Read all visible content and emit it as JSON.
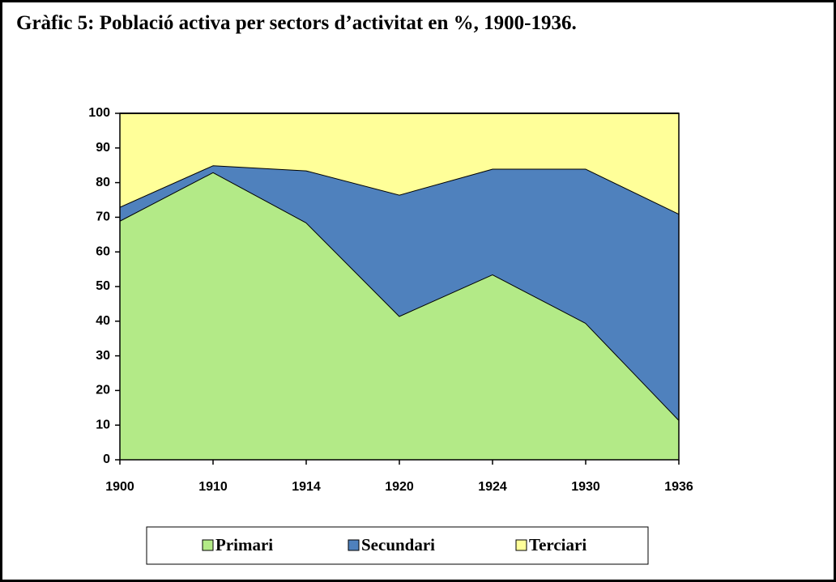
{
  "chart_data": {
    "type": "stacked_area",
    "title": "Gràfic 5: Població activa per sectors d’activitat en %, 1900-1936.",
    "categories": [
      "1900",
      "1910",
      "1914",
      "1920",
      "1924",
      "1930",
      "1936"
    ],
    "series": [
      {
        "name": "Primari",
        "color": "#b3ea87",
        "values": [
          69,
          83,
          68.5,
          41.5,
          53.5,
          39.5,
          11.5
        ]
      },
      {
        "name": "Secundari",
        "color": "#4f81bd",
        "values": [
          4,
          2,
          15,
          35,
          30.5,
          44.5,
          59.5
        ]
      },
      {
        "name": "Terciari",
        "color": "#ffff99",
        "values": [
          27,
          15,
          16.5,
          23.5,
          16,
          16,
          29
        ]
      }
    ],
    "ylim": [
      0,
      100
    ],
    "yticks": [
      0,
      10,
      20,
      30,
      40,
      50,
      60,
      70,
      80,
      90,
      100
    ],
    "legend": "bottom"
  }
}
